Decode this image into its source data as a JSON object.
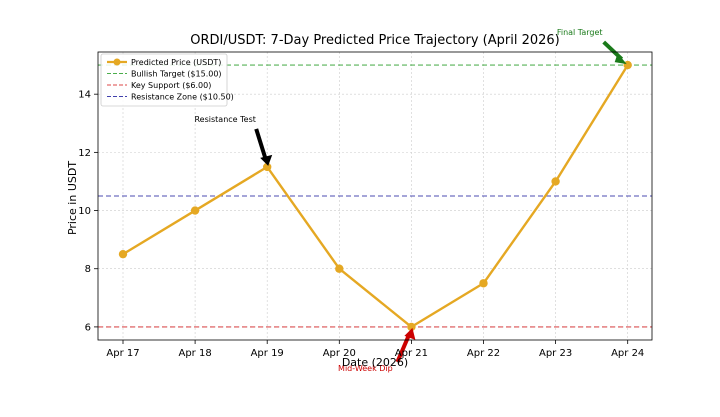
{
  "chart_data": {
    "type": "line",
    "title": "ORDI/USDT: 7-Day Predicted Price Trajectory (April 2026)",
    "xlabel": "Date (2026)",
    "ylabel": "Price in USDT",
    "categories": [
      "Apr 17",
      "Apr 18",
      "Apr 19",
      "Apr 20",
      "Apr 21",
      "Apr 22",
      "Apr 23",
      "Apr 24"
    ],
    "series": [
      {
        "name": "Predicted Price (USDT)",
        "values": [
          8.5,
          10.0,
          11.5,
          8.0,
          6.0,
          7.5,
          11.0,
          15.0
        ],
        "color": "#E5A823"
      }
    ],
    "reference_lines": [
      {
        "name": "Bullish Target ($15.00)",
        "value": 15.0,
        "color": "#2ca02c"
      },
      {
        "name": "Key Support ($6.00)",
        "value": 6.0,
        "color": "#d62728"
      },
      {
        "name": "Resistance Zone ($10.50)",
        "value": 10.5,
        "color": "#1f1f9f"
      }
    ],
    "annotations": [
      {
        "text": "Resistance Test",
        "category": "Apr 19",
        "value": 11.5,
        "color": "#000000"
      },
      {
        "text": "Mid-Week Dip",
        "category": "Apr 21",
        "value": 6.0,
        "color": "#cc0000"
      },
      {
        "text": "Final Target",
        "category": "Apr 24",
        "value": 15.0,
        "color": "#1a7a1a"
      }
    ],
    "yticks": [
      6,
      8,
      10,
      12,
      14
    ],
    "ylim": [
      5.55,
      15.45
    ],
    "grid": true,
    "legend_position": "top-left"
  }
}
